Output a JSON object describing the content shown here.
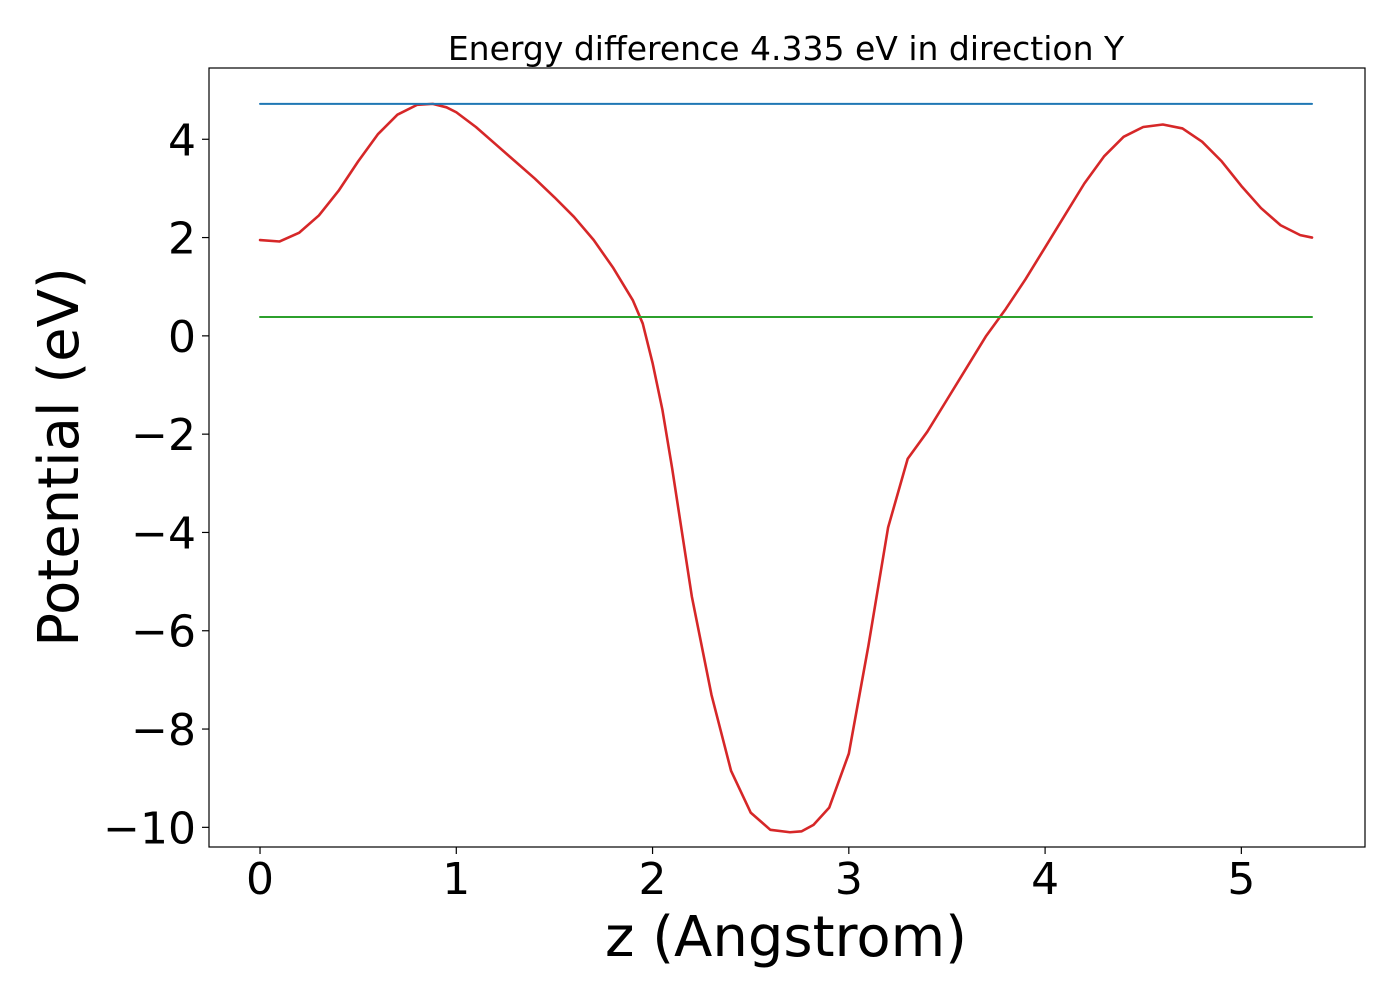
{
  "chart_data": {
    "type": "line",
    "title": "Energy difference 4.335 eV in direction Y",
    "xlabel": "z (Angstrom)",
    "ylabel": "Potential (eV)",
    "xlim": [
      -0.26,
      5.63
    ],
    "ylim": [
      -10.4,
      5.45
    ],
    "xticks": [
      0,
      1,
      2,
      3,
      4,
      5
    ],
    "yticks": [
      4,
      2,
      0,
      -2,
      -4,
      -6,
      -8,
      -10
    ],
    "xtick_labels": [
      "0",
      "1",
      "2",
      "3",
      "4",
      "5"
    ],
    "ytick_labels": [
      "4",
      "2",
      "0",
      "−2",
      "−4",
      "−6",
      "−8",
      "−10"
    ],
    "grid": false,
    "legend": false,
    "series": [
      {
        "color": "#d62728",
        "x": [
          0,
          0.1,
          0.2,
          0.3,
          0.4,
          0.5,
          0.6,
          0.7,
          0.8,
          0.88,
          0.95,
          1.0,
          1.1,
          1.2,
          1.3,
          1.4,
          1.5,
          1.6,
          1.7,
          1.8,
          1.9,
          1.95,
          2.0,
          2.05,
          2.1,
          2.2,
          2.3,
          2.4,
          2.5,
          2.6,
          2.7,
          2.76,
          2.82,
          2.9,
          3.0,
          3.1,
          3.2,
          3.3,
          3.4,
          3.5,
          3.6,
          3.7,
          3.8,
          3.9,
          4.0,
          4.1,
          4.2,
          4.3,
          4.4,
          4.5,
          4.6,
          4.7,
          4.8,
          4.9,
          5.0,
          5.1,
          5.2,
          5.3,
          5.36
        ],
        "y": [
          1.95,
          1.92,
          2.1,
          2.45,
          2.95,
          3.55,
          4.1,
          4.5,
          4.7,
          4.72,
          4.65,
          4.55,
          4.25,
          3.9,
          3.55,
          3.2,
          2.82,
          2.42,
          1.95,
          1.38,
          0.72,
          0.25,
          -0.55,
          -1.5,
          -2.7,
          -5.3,
          -7.3,
          -8.85,
          -9.7,
          -10.05,
          -10.1,
          -10.08,
          -9.95,
          -9.6,
          -8.5,
          -6.3,
          -3.9,
          -2.5,
          -1.95,
          -1.3,
          -0.65,
          0.0,
          0.55,
          1.15,
          1.8,
          2.45,
          3.1,
          3.65,
          4.05,
          4.25,
          4.3,
          4.22,
          3.95,
          3.55,
          3.05,
          2.6,
          2.25,
          2.05,
          2.0
        ]
      },
      {
        "color": "#1f77b4",
        "x": [
          0,
          5.36
        ],
        "y": [
          4.72,
          4.72
        ]
      },
      {
        "color": "#2ca02c",
        "x": [
          0,
          5.36
        ],
        "y": [
          0.385,
          0.385
        ]
      }
    ]
  }
}
